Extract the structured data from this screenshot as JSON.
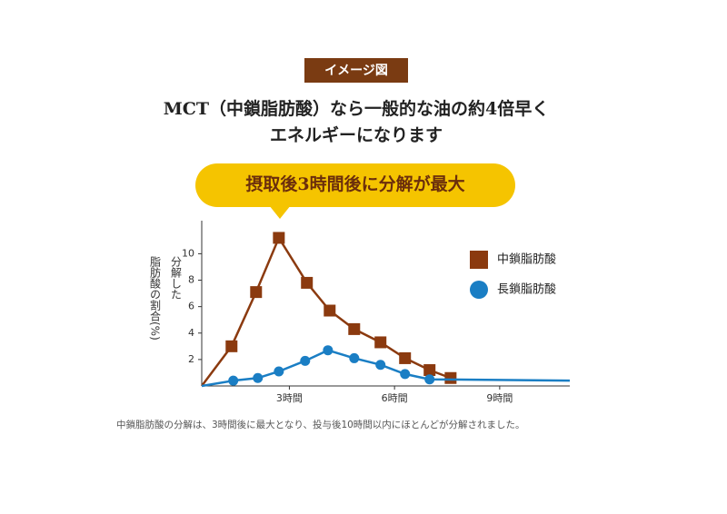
{
  "badge": "イメージ図",
  "heading": [
    "MCT（中鎖脂肪酸）なら一般的な油の約4倍早く",
    "エネルギーになります"
  ],
  "callout": "摂取後3時間後に分解が最大",
  "footnote": "中鎖脂肪酸の分解は、3時間後に最大となり、投与後10時間以内にほとんどが分解されました。",
  "chart_data": {
    "type": "line",
    "y_label": [
      "分解した",
      "脂肪酸の割合(%)"
    ],
    "xlim": [
      0.5,
      11
    ],
    "ylim": [
      0,
      12.5
    ],
    "xticks": [
      {
        "value": 3,
        "label": "3時間"
      },
      {
        "value": 6,
        "label": "6時間"
      },
      {
        "value": 9,
        "label": "9時間"
      }
    ],
    "yticks": [
      2,
      4,
      6,
      8,
      10
    ],
    "legend": "right",
    "series": [
      {
        "name": "中鎖脂肪酸",
        "color": "#8b3a0f",
        "marker": "square",
        "x": [
          0.5,
          1.35,
          2.05,
          2.7,
          3.5,
          4.15,
          4.85,
          5.6,
          6.3,
          7,
          7.6
        ],
        "values": [
          0,
          3.0,
          7.1,
          11.2,
          7.8,
          5.7,
          4.3,
          3.3,
          2.1,
          1.2,
          0.6
        ]
      },
      {
        "name": "長鎖脂肪酸",
        "color": "#1a7ec4",
        "marker": "circle",
        "x": [
          0.5,
          1.4,
          2.1,
          2.7,
          3.45,
          4.1,
          4.85,
          5.6,
          6.3,
          7,
          11
        ],
        "values": [
          0,
          0.4,
          0.6,
          1.1,
          1.9,
          2.7,
          2.1,
          1.6,
          0.9,
          0.5,
          0.4
        ]
      }
    ]
  }
}
